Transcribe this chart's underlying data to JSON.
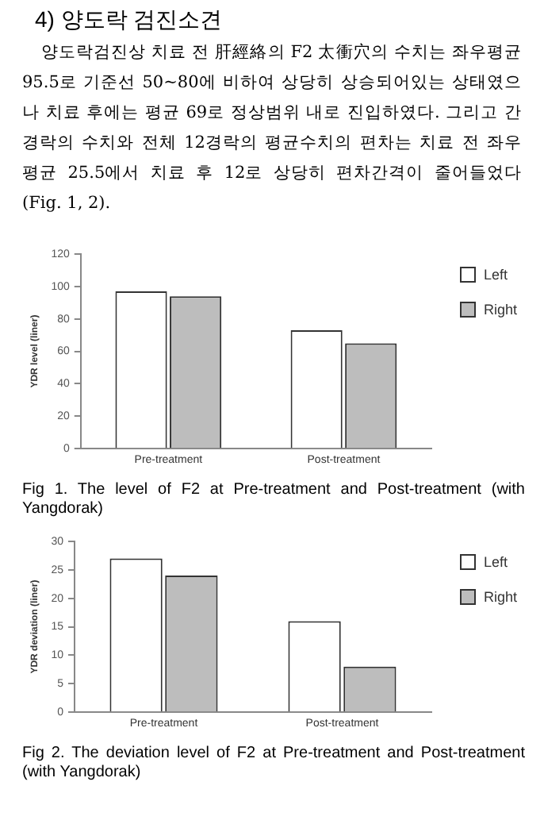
{
  "chart_data": [
    {
      "type": "bar",
      "title": "4) 양도락 검진소견",
      "subtitle": "양도락검진상 치료 전 肝經絡의 F2 太衝穴의 수치는 좌우평균 95.5로 기준선 50~80에 비하여 상당히 상승되어있는 상태였으나 치료 후에는 평균 69로 정상범위 내로 진입하였다. 그리고 간경락의 수치와 전체 12경락의 평균수치의 편차는 치료 전 좌우평균 25.5에서 치료 후 12로 상당히 편차간격이 줄어들었다(Fig. 1, 2).",
      "categories": [
        "Pre-treatment",
        "Post-treatment"
      ],
      "ylabel": "YDR level (liner)",
      "ylim": [
        0,
        120
      ],
      "yticks": [
        0,
        20,
        40,
        60,
        80,
        100,
        120
      ],
      "grid": false,
      "legend": "right",
      "annotations": [
        "Fig 1. The level of F2 at Pre-treatment and Post-treatment (with Yangdorak)"
      ],
      "series": [
        {
          "name": "Left",
          "color": "#ffffff",
          "values": [
            97,
            73
          ]
        },
        {
          "name": "Right",
          "color": "#bdbdbd",
          "values": [
            94,
            65
          ]
        }
      ]
    },
    {
      "type": "bar",
      "categories": [
        "Pre-treatment",
        "Post-treatment"
      ],
      "ylabel": "YDR deviation (liner)",
      "ylim": [
        0,
        30
      ],
      "yticks": [
        0,
        5,
        10,
        15,
        20,
        25,
        30
      ],
      "grid": false,
      "legend": "right",
      "annotations": [
        "Fig 2. The deviation level of F2 at Pre-treatment and Post-treatment (with Yangdorak)"
      ],
      "series": [
        {
          "name": "Left",
          "color": "#ffffff",
          "values": [
            27,
            16
          ]
        },
        {
          "name": "Right",
          "color": "#bdbdbd",
          "values": [
            24,
            8
          ]
        }
      ]
    }
  ]
}
